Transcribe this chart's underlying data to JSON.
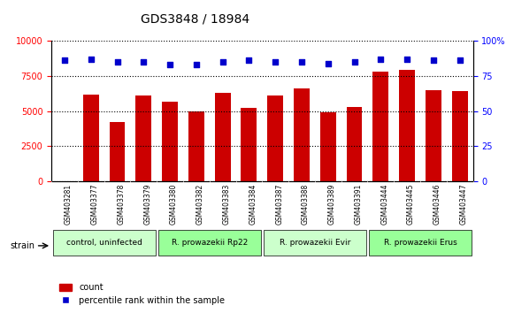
{
  "title": "GDS3848 / 18984",
  "samples": [
    "GSM403281",
    "GSM403377",
    "GSM403378",
    "GSM403379",
    "GSM403380",
    "GSM403382",
    "GSM403383",
    "GSM403384",
    "GSM403387",
    "GSM403388",
    "GSM403389",
    "GSM403391",
    "GSM403444",
    "GSM403445",
    "GSM403446",
    "GSM403447"
  ],
  "counts": [
    50,
    6200,
    4200,
    6100,
    5700,
    5000,
    6300,
    5200,
    6100,
    6600,
    4900,
    5300,
    7800,
    7900,
    6500,
    6400
  ],
  "percentiles": [
    86,
    87,
    85,
    85,
    83,
    83,
    85,
    86,
    85,
    85,
    84,
    85,
    87,
    87,
    86,
    86
  ],
  "bar_color": "#cc0000",
  "dot_color": "#0000cc",
  "groups": [
    {
      "label": "control, uninfected",
      "start": 0,
      "end": 4,
      "color": "#ccffcc"
    },
    {
      "label": "R. prowazekii Rp22",
      "start": 4,
      "end": 8,
      "color": "#99ff99"
    },
    {
      "label": "R. prowazekii Evir",
      "start": 8,
      "end": 12,
      "color": "#ccffcc"
    },
    {
      "label": "R. prowazekii Erus",
      "start": 12,
      "end": 16,
      "color": "#99ff99"
    }
  ],
  "ylim_left": [
    0,
    10000
  ],
  "ylim_right": [
    0,
    100
  ],
  "yticks_left": [
    0,
    2500,
    5000,
    7500,
    10000
  ],
  "yticks_right": [
    0,
    25,
    50,
    75,
    100
  ],
  "yticklabels_right": [
    "0",
    "25",
    "50",
    "75",
    "100%"
  ],
  "background_color": "#f0f0f0",
  "strain_label": "strain",
  "legend_count_label": "count",
  "legend_pct_label": "percentile rank within the sample"
}
